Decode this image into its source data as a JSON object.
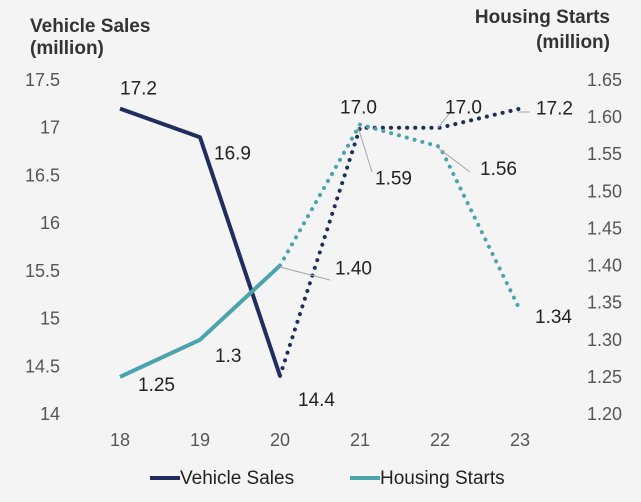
{
  "chart_data": {
    "type": "line",
    "x": [
      "18",
      "19",
      "20",
      "21",
      "22",
      "23"
    ],
    "y_left": {
      "title_line1": "Vehicle Sales",
      "title_line2": "(million)",
      "range": [
        14,
        17.5
      ],
      "ticks": [
        "17.5",
        "17",
        "16.5",
        "16",
        "15.5",
        "15",
        "14.5",
        "14"
      ]
    },
    "y_right": {
      "title_line1": "Housing Starts",
      "title_line2": "(million)",
      "range": [
        1.2,
        1.65
      ],
      "ticks": [
        "1.65",
        "1.60",
        "1.55",
        "1.50",
        "1.45",
        "1.40",
        "1.35",
        "1.30",
        "1.25",
        "1.20"
      ]
    },
    "series": [
      {
        "name": "Vehicle Sales",
        "axis": "left",
        "color": "#1f2e5e",
        "values": [
          17.2,
          16.9,
          14.4,
          17.0,
          17.0,
          17.2
        ],
        "actual_through_index": 2,
        "labels": [
          "17.2",
          "16.9",
          "14.4",
          "17.0",
          "17.0",
          "17.2"
        ]
      },
      {
        "name": "Housing Starts",
        "axis": "right",
        "color": "#4aa3ad",
        "values": [
          1.25,
          1.3,
          1.4,
          1.59,
          1.56,
          1.34
        ],
        "actual_through_index": 2,
        "labels": [
          "1.25",
          "1.3",
          "1.40",
          "1.59",
          "1.56",
          "1.34"
        ]
      }
    ],
    "grid": false,
    "legend_position": "bottom"
  }
}
